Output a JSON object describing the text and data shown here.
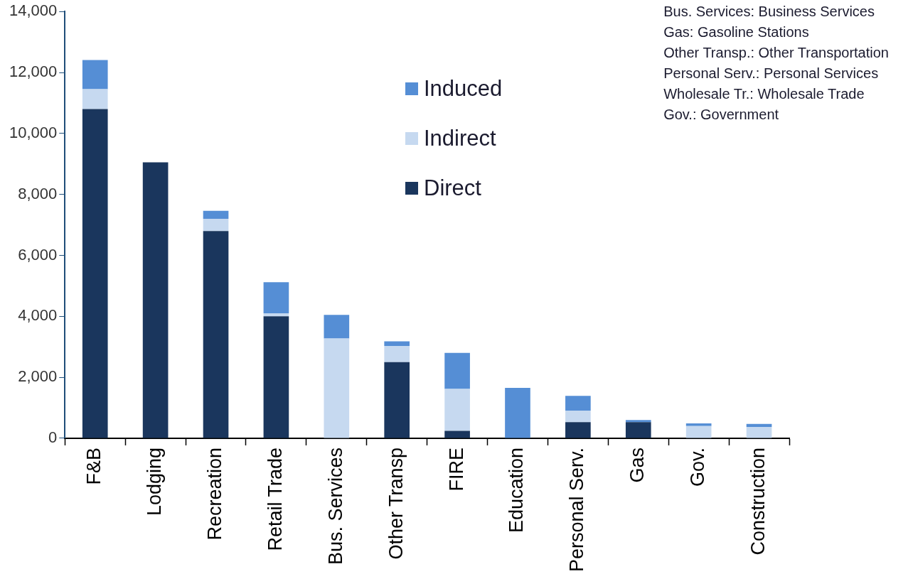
{
  "chart_data": {
    "type": "bar",
    "stacked": true,
    "categories": [
      "F&B",
      "Lodging",
      "Recreation",
      "Retail Trade",
      "Bus. Services",
      "Other Transp",
      "FIRE",
      "Education",
      "Personal Serv.",
      "Gas",
      "Gov.",
      "Construction"
    ],
    "series": [
      {
        "name": "Direct",
        "color": "#1a365d",
        "values": [
          10800,
          9050,
          6800,
          4000,
          0,
          2500,
          240,
          0,
          530,
          530,
          0,
          0
        ]
      },
      {
        "name": "Indirect",
        "color": "#c6d9f0",
        "values": [
          650,
          0,
          400,
          100,
          3270,
          530,
          1380,
          0,
          380,
          0,
          400,
          370
        ]
      },
      {
        "name": "Induced",
        "color": "#558ed5",
        "values": [
          960,
          0,
          260,
          1020,
          780,
          150,
          1180,
          1650,
          480,
          70,
          90,
          100
        ]
      }
    ],
    "ylim": [
      0,
      14000
    ],
    "yticks": [
      0,
      {
        "value": 2000,
        "label": "2,000"
      },
      {
        "value": 4000,
        "label": "4,000"
      },
      {
        "value": 6000,
        "label": "6,000"
      },
      {
        "value": 8000,
        "label": "8,000"
      },
      {
        "value": 10000,
        "label": "10,000"
      },
      {
        "value": 12000,
        "label": "12,000"
      },
      {
        "value": 14000,
        "label": "14,000"
      }
    ],
    "grid": false,
    "legend": "top",
    "annotations": [
      "Bus. Services: Business Services",
      "Gas: Gasoline Stations",
      "Other Transp.: Other Transportation",
      "Personal Serv.: Personal Services",
      "Wholesale Tr.: Wholesale Trade",
      "Gov.: Government"
    ]
  }
}
